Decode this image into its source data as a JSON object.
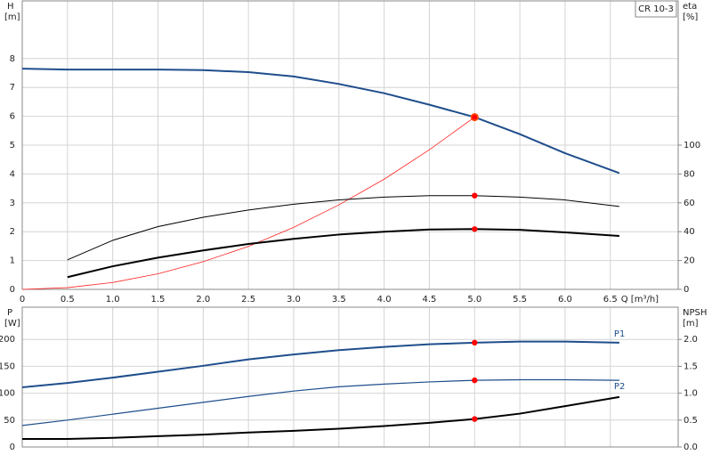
{
  "chart_data": [
    {
      "type": "line",
      "annotation": "CR 10-3",
      "ylabel": "H",
      "yunit": "[m]",
      "y2label": "eta",
      "y2unit": "[%]",
      "xlabel": "Q [m³/h]",
      "x": [
        0,
        0.5,
        1,
        1.5,
        2,
        2.5,
        3,
        3.5,
        4,
        4.5,
        5,
        5.5,
        6,
        6.6
      ],
      "xlim": [
        0,
        7.25
      ],
      "xticks": [
        0,
        0.5,
        {
          "value": 1,
          "label": "1.0"
        },
        1.5,
        {
          "value": 2,
          "label": "2.0"
        },
        2.5,
        {
          "value": 3,
          "label": "3.0"
        },
        3.5,
        {
          "value": 4,
          "label": "4.0"
        },
        4.5,
        {
          "value": 5,
          "label": "5.0"
        },
        5.5,
        {
          "value": 6,
          "label": "6.0"
        },
        6.5
      ],
      "ylim": [
        0,
        10
      ],
      "yticks": [
        0,
        1,
        2,
        3,
        4,
        5,
        6,
        7,
        8
      ],
      "y2lim": [
        0,
        200
      ],
      "y2ticks": [
        0,
        20,
        40,
        60,
        80,
        100
      ],
      "grid": true,
      "highlight_x": 5,
      "series": [
        {
          "color": "#1f4e8c",
          "width": 2,
          "marker_color": "#ffd700",
          "values": [
            7.65,
            7.62,
            7.62,
            7.62,
            7.6,
            7.53,
            7.38,
            7.12,
            6.8,
            6.4,
            5.97,
            5.38,
            4.72,
            4.03
          ]
        },
        {
          "color": "#ff2020",
          "width": 0.8,
          "values": [
            0,
            0.06,
            0.24,
            0.54,
            0.96,
            1.49,
            2.15,
            2.93,
            3.82,
            4.84,
            5.97,
            null,
            null,
            null
          ]
        },
        {
          "color": "#000000",
          "width": 1,
          "axis": "y2",
          "values": [
            null,
            20.5,
            34,
            43.5,
            50,
            55,
            59,
            62,
            64,
            65,
            65,
            64,
            62,
            57.5
          ]
        },
        {
          "color": "#000000",
          "width": 2,
          "axis": "y2",
          "values": [
            null,
            8.5,
            16,
            22,
            27,
            31.5,
            35,
            38,
            40,
            41.5,
            41.8,
            41.3,
            39.5,
            37
          ]
        }
      ]
    },
    {
      "type": "line",
      "ylabel": "P",
      "yunit": "[W]",
      "y2label": "NPSH",
      "y2unit": "[m]",
      "x": [
        0,
        0.5,
        1,
        1.5,
        2,
        2.5,
        3,
        3.5,
        4,
        4.5,
        5,
        5.5,
        6,
        6.6
      ],
      "xlim": [
        0,
        7.25
      ],
      "ylim": [
        0,
        260
      ],
      "yticks": [
        0,
        50,
        100,
        150,
        200
      ],
      "y2lim": [
        0,
        2.6
      ],
      "y2ticks": [
        {
          "value": 0,
          "label": "0.0"
        },
        0.5,
        {
          "value": 1,
          "label": "1.0"
        },
        1.5,
        {
          "value": 2,
          "label": "2.0"
        }
      ],
      "grid": true,
      "highlight_x": 5,
      "series": [
        {
          "name": "P1",
          "color": "#1f4e8c",
          "width": 2,
          "values": [
            111,
            119,
            129,
            140,
            151,
            163,
            172,
            180,
            186,
            191,
            194,
            196,
            196,
            194
          ]
        },
        {
          "name": "P2",
          "color": "#1f4e8c",
          "width": 1.2,
          "values": [
            40,
            50,
            61,
            72,
            83,
            94,
            104,
            112,
            117,
            121,
            124,
            125,
            125,
            124
          ]
        },
        {
          "color": "#000000",
          "width": 2,
          "axis": "y2",
          "values": [
            0.15,
            0.15,
            0.17,
            0.2,
            0.23,
            0.27,
            0.3,
            0.34,
            0.39,
            0.45,
            0.52,
            0.62,
            0.76,
            0.93
          ]
        }
      ]
    }
  ]
}
